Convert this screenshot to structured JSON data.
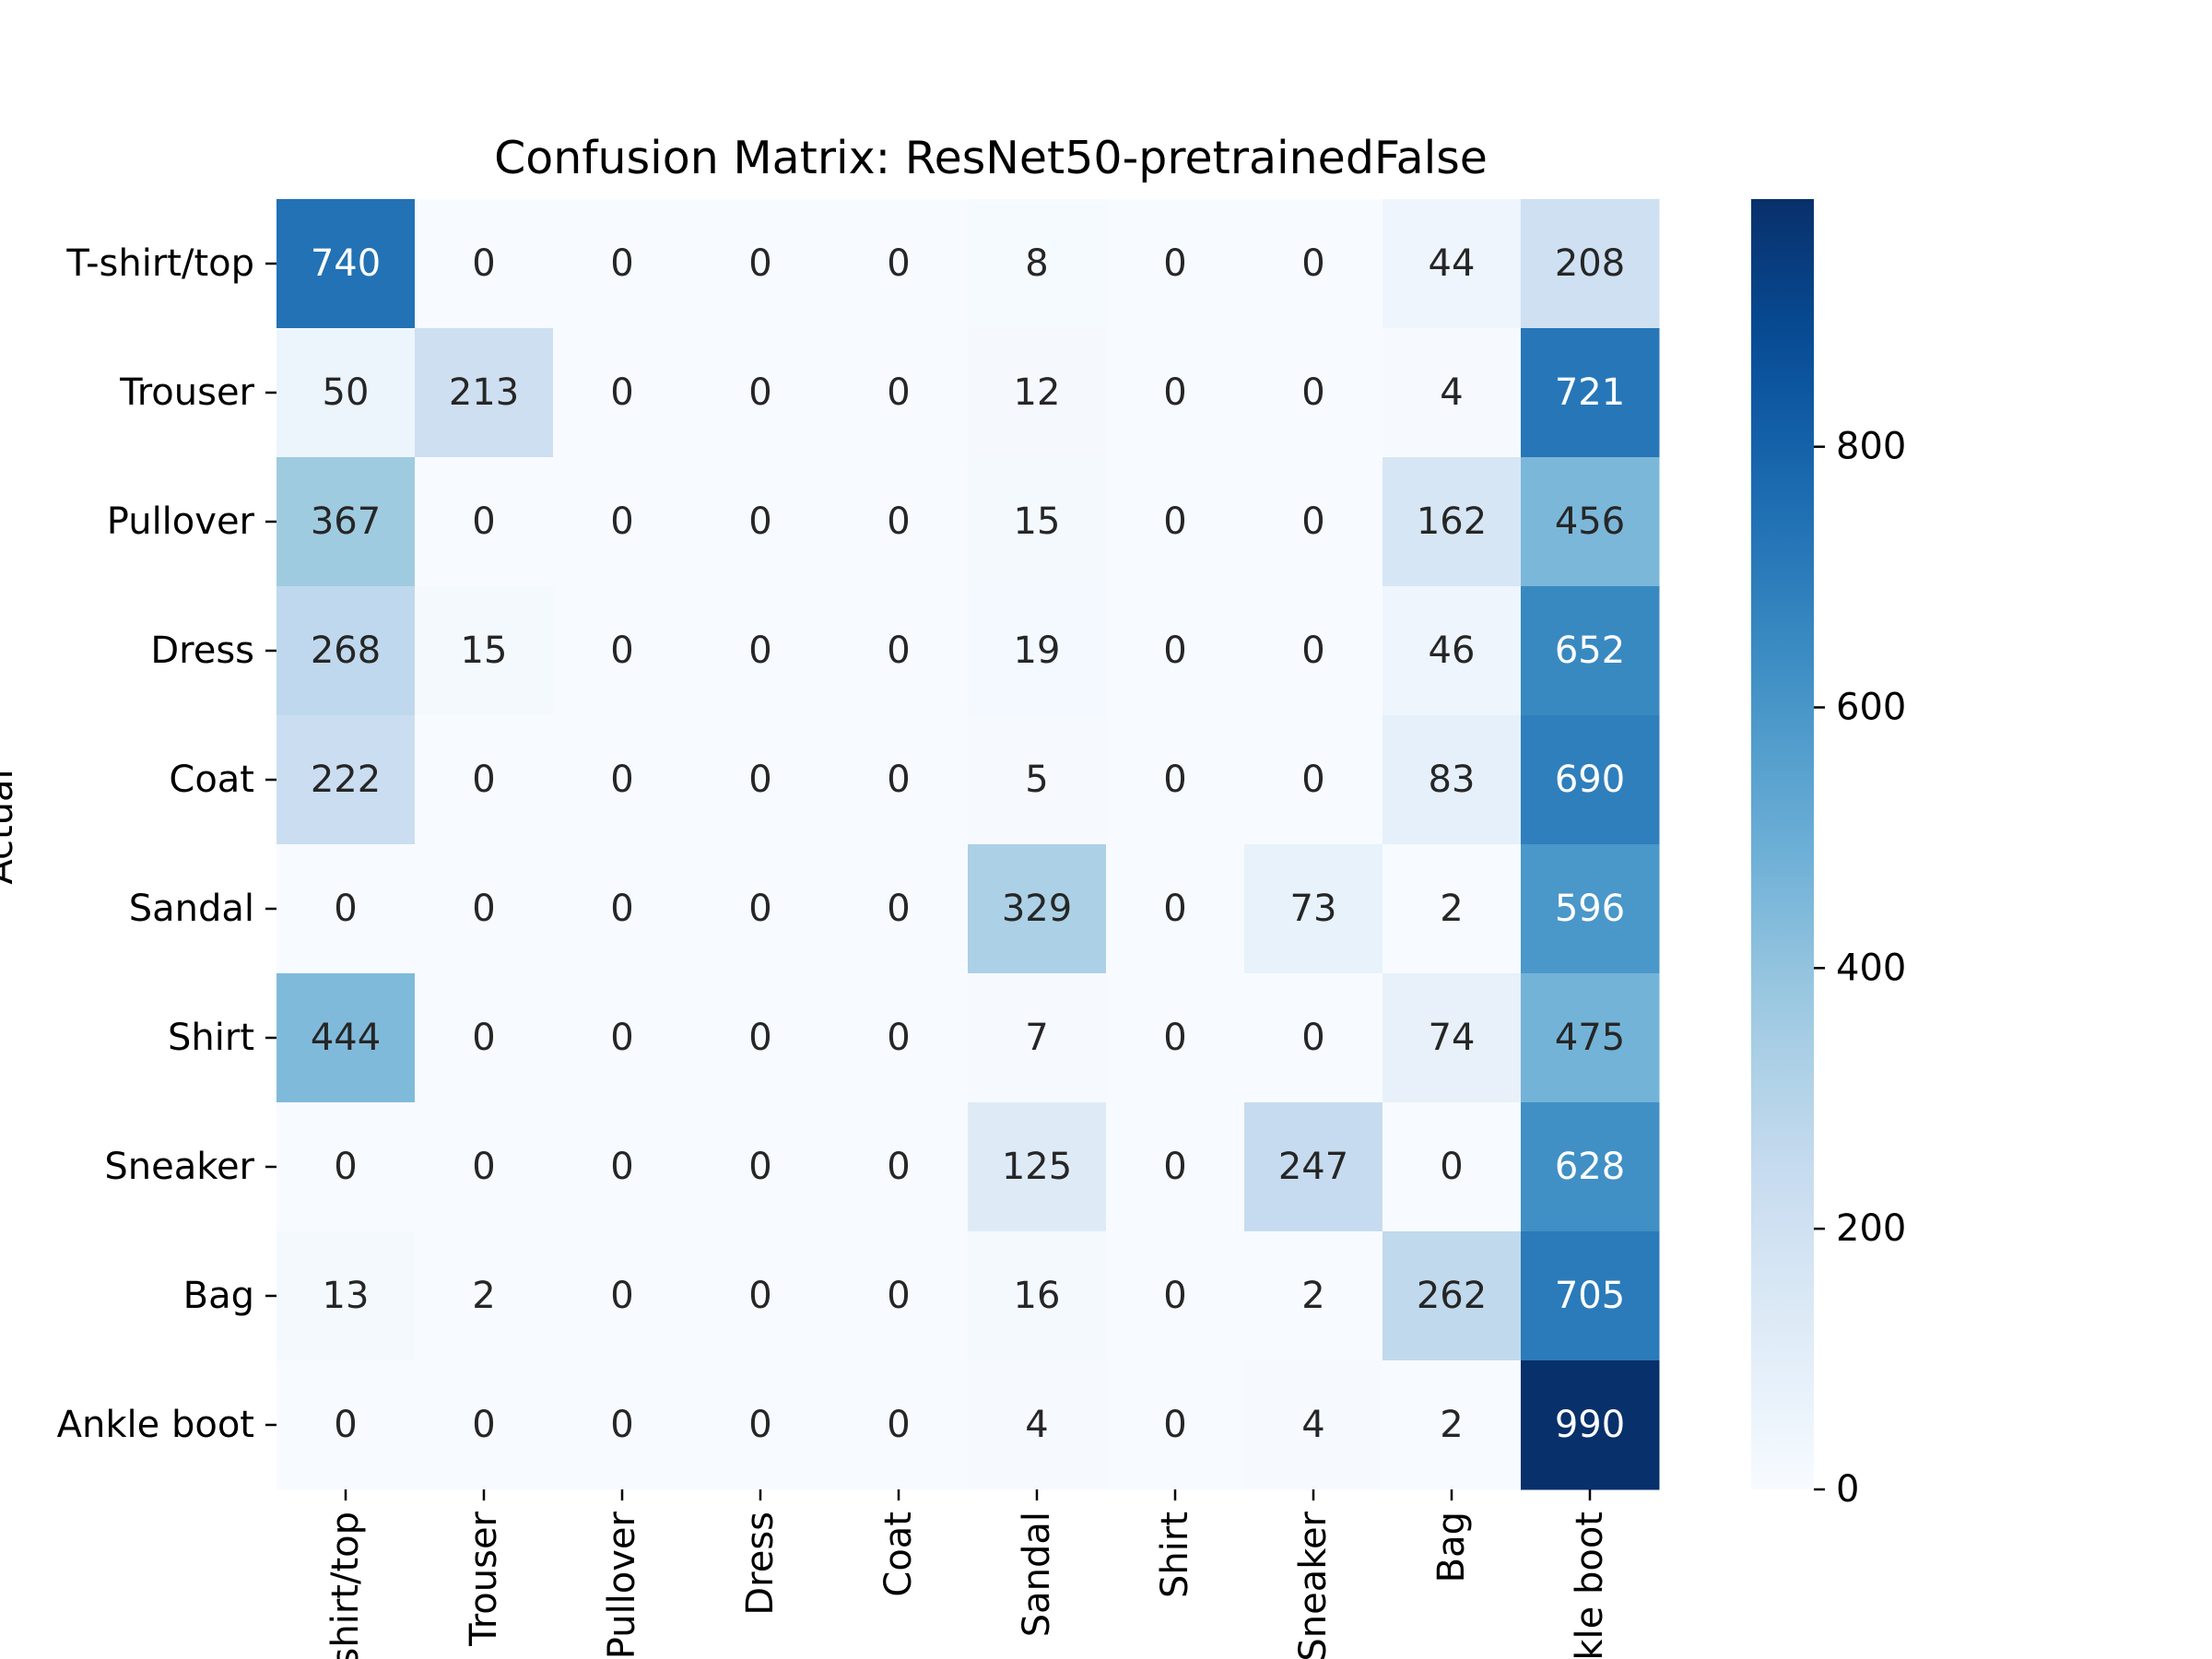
{
  "chart_data": {
    "type": "heatmap",
    "title": "Confusion Matrix: ResNet50-pretrainedFalse",
    "xlabel": "",
    "ylabel": "Actual",
    "colormap": "Blues",
    "categories": [
      "T-shirt/top",
      "Trouser",
      "Pullover",
      "Dress",
      "Coat",
      "Sandal",
      "Shirt",
      "Sneaker",
      "Bag",
      "Ankle boot"
    ],
    "row_labels": [
      "T-shirt/top",
      "Trouser",
      "Pullover",
      "Dress",
      "Coat",
      "Sandal",
      "Shirt",
      "Sneaker",
      "Bag",
      "Ankle boot"
    ],
    "col_labels": [
      "T-shirt/top",
      "Trouser",
      "Pullover",
      "Dress",
      "Coat",
      "Sandal",
      "Shirt",
      "Sneaker",
      "Bag",
      "Ankle boot"
    ],
    "matrix": [
      [
        740,
        0,
        0,
        0,
        0,
        8,
        0,
        0,
        44,
        208
      ],
      [
        50,
        213,
        0,
        0,
        0,
        12,
        0,
        0,
        4,
        721
      ],
      [
        367,
        0,
        0,
        0,
        0,
        15,
        0,
        0,
        162,
        456
      ],
      [
        268,
        15,
        0,
        0,
        0,
        19,
        0,
        0,
        46,
        652
      ],
      [
        222,
        0,
        0,
        0,
        0,
        5,
        0,
        0,
        83,
        690
      ],
      [
        0,
        0,
        0,
        0,
        0,
        329,
        0,
        73,
        2,
        596
      ],
      [
        444,
        0,
        0,
        0,
        0,
        7,
        0,
        0,
        74,
        475
      ],
      [
        0,
        0,
        0,
        0,
        0,
        125,
        0,
        247,
        0,
        628
      ],
      [
        13,
        2,
        0,
        0,
        0,
        16,
        0,
        2,
        262,
        705
      ],
      [
        0,
        0,
        0,
        0,
        0,
        4,
        0,
        4,
        2,
        990
      ]
    ],
    "colorbar": {
      "range": [
        0,
        990
      ],
      "ticks": [
        0,
        200,
        400,
        600,
        800
      ],
      "tick_labels": [
        "0",
        "200",
        "400",
        "600",
        "800"
      ]
    }
  }
}
